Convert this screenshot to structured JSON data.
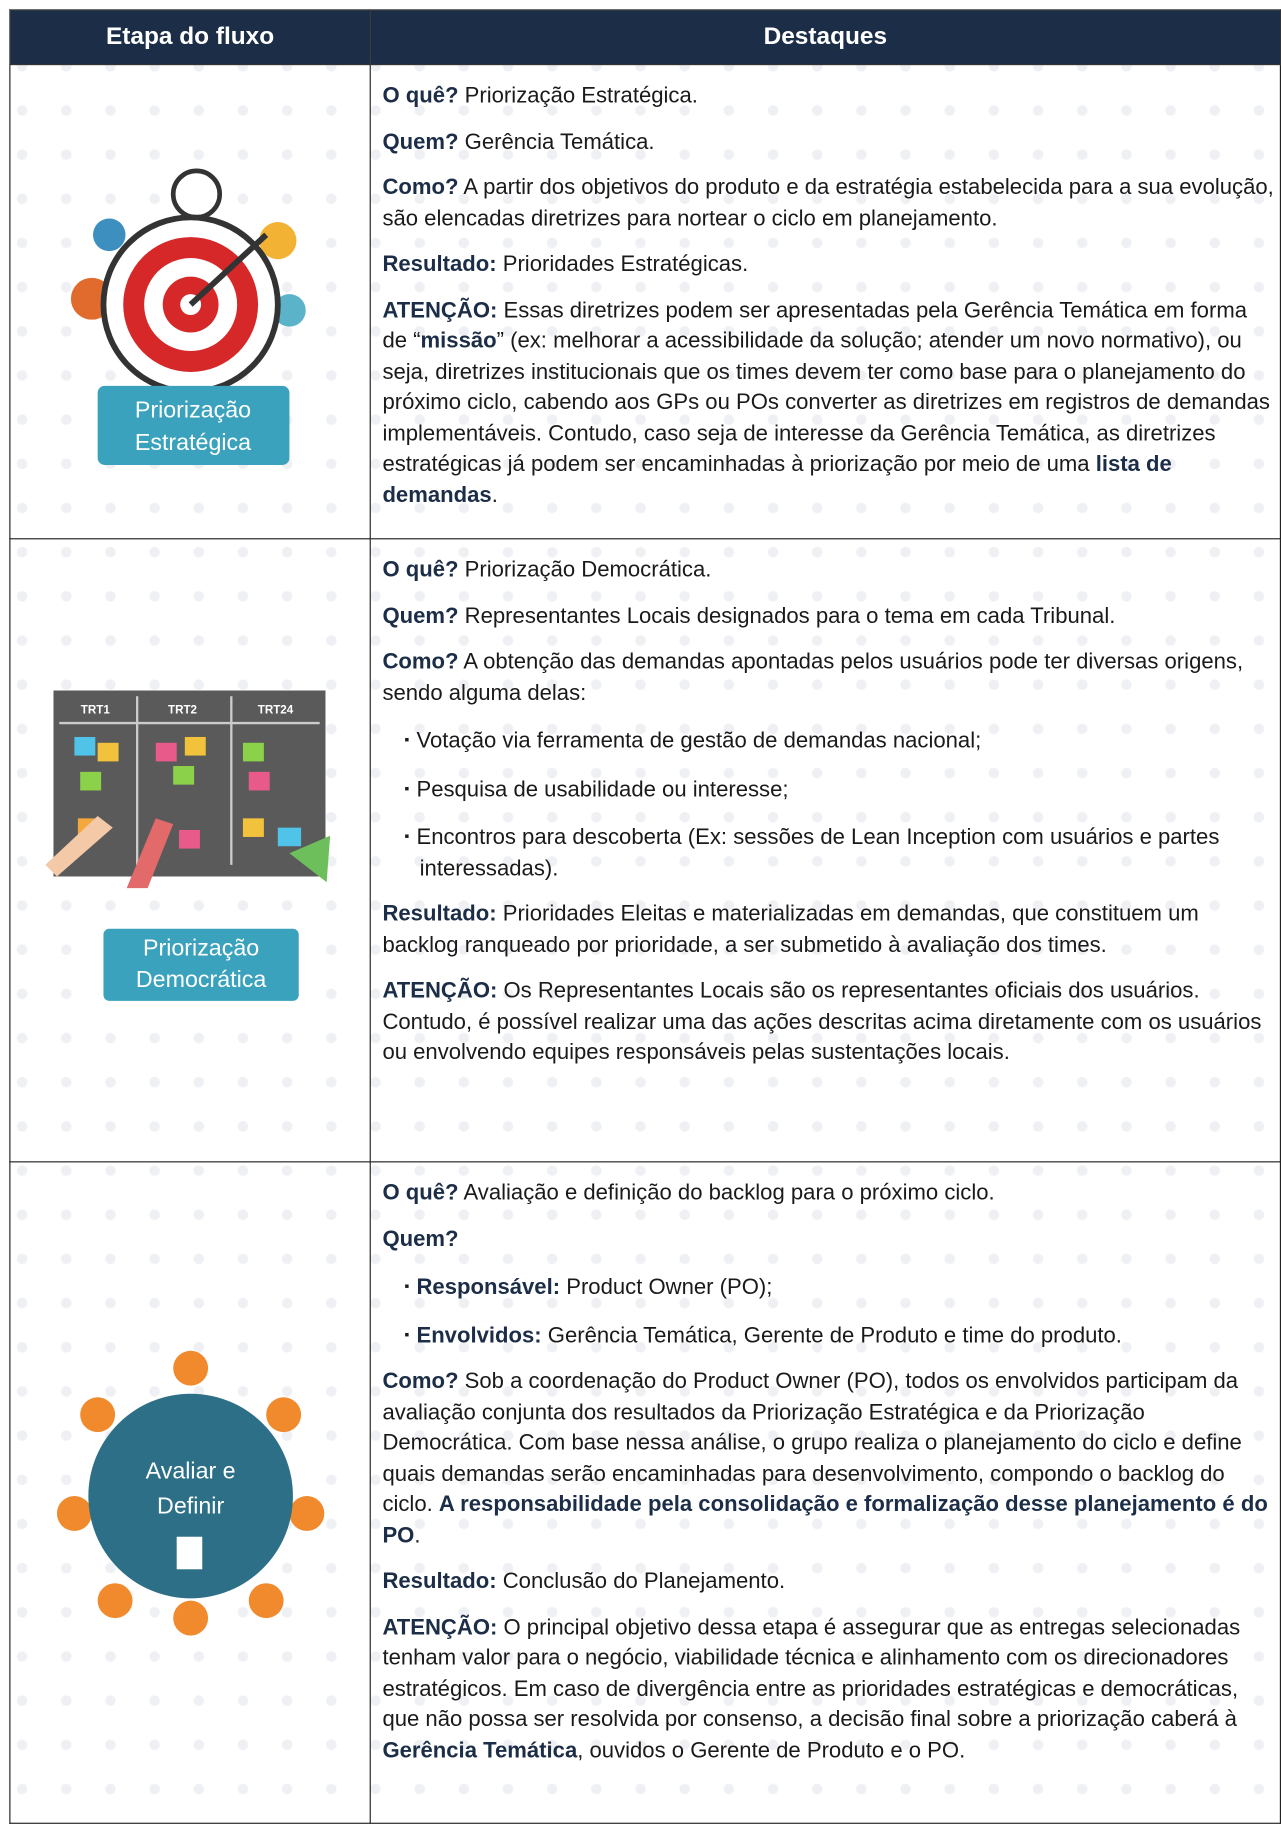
{
  "table": {
    "header": [
      "Etapa do fluxo",
      "Destaques"
    ],
    "rows": [
      {
        "stage": [
          "Priorização",
          "Estratégica"
        ],
        "paragraphs": [
          {
            "runs": [
              {
                "strong": "O quê?"
              },
              {
                "text": " Priorização Estratégica."
              }
            ]
          },
          {
            "runs": [
              {
                "strong": "Quem?"
              },
              {
                "text": " Gerência Temática."
              }
            ]
          },
          {
            "runs": [
              {
                "strong": "Como?"
              },
              {
                "text": " A partir dos objetivos do produto e da estratégia estabelecida para a sua evolução, são elencadas diretrizes para nortear o ciclo em planejamento."
              }
            ]
          },
          {
            "runs": [
              {
                "strong": "Resultado:"
              },
              {
                "text": " Prioridades Estratégicas."
              }
            ]
          },
          {
            "runs": [
              {
                "strong": "ATENÇÃO:"
              },
              {
                "text": " Essas diretrizes podem ser apresentadas pela Gerência Temática em forma de “"
              },
              {
                "strong": "missão"
              },
              {
                "text": "” (ex: melhorar a acessibilidade da solução; atender um novo normativo), ou seja, diretrizes institucionais que os times devem ter como base para o planejamento do próximo ciclo, cabendo aos GPs ou POs converter as diretrizes em registros de demandas implementáveis. Contudo, caso seja de interesse da Gerência Temática, as diretrizes estratégicas já podem ser encaminhadas à priorização por meio de uma "
              },
              {
                "strong": "lista de demandas"
              },
              {
                "text": "."
              }
            ]
          }
        ]
      },
      {
        "stage": [
          "Priorização",
          "Democrática"
        ],
        "board": [
          "TRT1",
          "TRT2",
          "TRT24"
        ],
        "paragraphs": [
          {
            "runs": [
              {
                "strong": "O quê?"
              },
              {
                "text": " Priorização Democrática."
              }
            ]
          },
          {
            "runs": [
              {
                "strong": "Quem?"
              },
              {
                "text": " Representantes Locais designados para o tema em cada Tribunal."
              }
            ]
          },
          {
            "runs": [
              {
                "strong": "Como?"
              },
              {
                "text": " A obtenção das demandas apontadas pelos usuários pode ter diversas origens, sendo alguma delas:"
              }
            ]
          },
          {
            "bullet": true,
            "runs": [
              {
                "text": "Votação via ferramenta de gestão de demandas nacional;"
              }
            ]
          },
          {
            "bullet": true,
            "runs": [
              {
                "text": "Pesquisa de usabilidade ou interesse;"
              }
            ]
          },
          {
            "bullet": true,
            "runs": [
              {
                "text": "Encontros para descoberta (Ex: sessões de Lean Inception com usuários e partes interessadas)."
              }
            ]
          },
          {
            "runs": [
              {
                "strong": "Resultado:"
              },
              {
                "text": " Prioridades Eleitas e materializadas em demandas, que constituem um backlog ranqueado por prioridade, a ser submetido à avaliação dos times."
              }
            ]
          },
          {
            "runs": [
              {
                "strong": "ATENÇÃO:"
              },
              {
                "text": " Os Representantes Locais são os representantes oficiais dos usuários. Contudo, é possível realizar uma das ações descritas acima diretamente com os usuários ou envolvendo equipes responsáveis pelas sustentações locais."
              }
            ]
          }
        ]
      },
      {
        "stage": [
          "Avaliar e",
          "Definir"
        ],
        "paragraphs": [
          {
            "runs": [
              {
                "strong": "O quê?"
              },
              {
                "text": " Avaliação e definição do backlog para o próximo ciclo."
              }
            ]
          },
          {
            "runs": [
              {
                "strong": "Quem?"
              }
            ]
          },
          {
            "bullet": true,
            "runs": [
              {
                "strong": "Responsável:"
              },
              {
                "text": " Product Owner (PO);"
              }
            ]
          },
          {
            "bullet": true,
            "runs": [
              {
                "strong": "Envolvidos:"
              },
              {
                "text": " Gerência Temática, Gerente de Produto e time do produto."
              }
            ]
          },
          {
            "runs": [
              {
                "strong": "Como?"
              },
              {
                "text": " Sob a coordenação do Product Owner (PO), todos os envolvidos participam da avaliação conjunta dos resultados da Priorização Estratégica e da Priorização Democrática. Com base nessa análise, o grupo realiza o planejamento do ciclo e define quais demandas serão encaminhadas para desenvolvimento, compondo o backlog do ciclo. "
              },
              {
                "strong": "A responsabilidade pela consolidação e formalização desse planejamento é do PO"
              },
              {
                "text": "."
              }
            ]
          },
          {
            "runs": [
              {
                "strong": "Resultado:"
              },
              {
                "text": " Conclusão do Planejamento."
              }
            ]
          },
          {
            "runs": [
              {
                "strong": "ATENÇÃO:"
              },
              {
                "text": " O principal objetivo dessa etapa é assegurar que as entregas selecionadas tenham valor para o negócio, viabilidade técnica e alinhamento com os direcionadores estratégicos. Em caso de divergência entre as prioridades estratégicas e democráticas, que não possa ser resolvida por consenso, a decisão final sobre a priorização caberá à "
              },
              {
                "strong": "Gerência Temática"
              },
              {
                "text": ", ouvidos o Gerente de Produto e o PO."
              }
            ]
          }
        ]
      }
    ]
  }
}
